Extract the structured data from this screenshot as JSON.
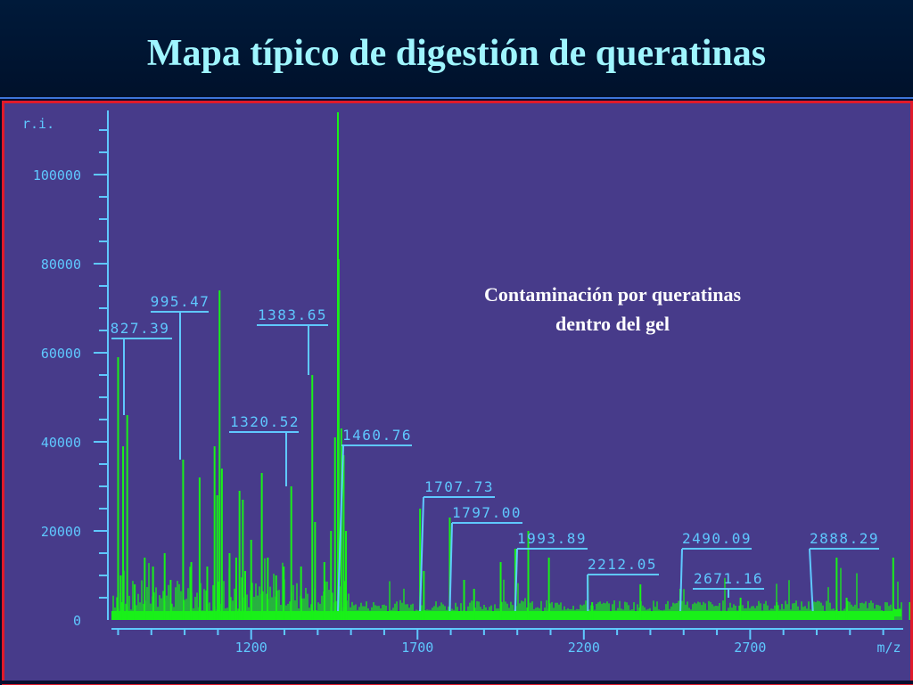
{
  "slide": {
    "title": "Mapa típico de digestión de queratinas",
    "annotation_lines": [
      "Contaminación por queratinas",
      "dentro del gel"
    ]
  },
  "colors": {
    "background": "#473b8a",
    "axis": "#5fc8ff",
    "spectrum": "#19f019",
    "frame": "#e01a2a",
    "title": "#9ff5ff"
  },
  "chart_data": {
    "type": "line",
    "subtype": "mass-spectrum",
    "xlabel": "m/z",
    "ylabel": "r.i.",
    "xlim": [
      780,
      3160
    ],
    "ylim": [
      0,
      115000
    ],
    "x_ticks": [
      1200,
      1700,
      2200,
      2700
    ],
    "y_ticks": [
      0,
      20000,
      40000,
      60000,
      80000,
      100000
    ],
    "y_tick_labels": [
      "0",
      "20000",
      "40000",
      "60000",
      "80000",
      "100000"
    ],
    "baseline": 2000,
    "peaks": [
      {
        "mz": 800,
        "ri": 59000
      },
      {
        "mz": 808,
        "ri": 10000
      },
      {
        "mz": 815,
        "ri": 39000
      },
      {
        "mz": 827.39,
        "ri": 46000
      },
      {
        "mz": 850,
        "ri": 8000
      },
      {
        "mz": 880,
        "ri": 14000
      },
      {
        "mz": 905,
        "ri": 12000
      },
      {
        "mz": 940,
        "ri": 15000
      },
      {
        "mz": 958,
        "ri": 9000
      },
      {
        "mz": 995.47,
        "ri": 36000
      },
      {
        "mz": 1020,
        "ri": 13000
      },
      {
        "mz": 1045,
        "ri": 32000
      },
      {
        "mz": 1068,
        "ri": 12000
      },
      {
        "mz": 1090,
        "ri": 39000
      },
      {
        "mz": 1098,
        "ri": 28000
      },
      {
        "mz": 1105,
        "ri": 74000
      },
      {
        "mz": 1112,
        "ri": 34000
      },
      {
        "mz": 1135,
        "ri": 15000
      },
      {
        "mz": 1155,
        "ri": 14000
      },
      {
        "mz": 1165,
        "ri": 29000
      },
      {
        "mz": 1175,
        "ri": 27000
      },
      {
        "mz": 1182,
        "ri": 11000
      },
      {
        "mz": 1200,
        "ri": 18000
      },
      {
        "mz": 1232,
        "ri": 33000
      },
      {
        "mz": 1250,
        "ri": 14000
      },
      {
        "mz": 1275,
        "ri": 10000
      },
      {
        "mz": 1298,
        "ri": 12000
      },
      {
        "mz": 1320.52,
        "ri": 30000
      },
      {
        "mz": 1350,
        "ri": 12000
      },
      {
        "mz": 1383.65,
        "ri": 55000
      },
      {
        "mz": 1392,
        "ri": 22000
      },
      {
        "mz": 1420,
        "ri": 13000
      },
      {
        "mz": 1440,
        "ri": 20000
      },
      {
        "mz": 1452,
        "ri": 41000
      },
      {
        "mz": 1460.76,
        "ri": 114000
      },
      {
        "mz": 1463,
        "ri": 81000
      },
      {
        "mz": 1471,
        "ri": 43000
      },
      {
        "mz": 1478,
        "ri": 37000
      },
      {
        "mz": 1485,
        "ri": 20000
      },
      {
        "mz": 1707.73,
        "ri": 25000
      },
      {
        "mz": 1719,
        "ri": 11000
      },
      {
        "mz": 1797.0,
        "ri": 23000
      },
      {
        "mz": 1840,
        "ri": 9000
      },
      {
        "mz": 1870,
        "ri": 7000
      },
      {
        "mz": 1950,
        "ri": 13000
      },
      {
        "mz": 1993.89,
        "ri": 16000
      },
      {
        "mz": 2033,
        "ri": 20000
      },
      {
        "mz": 2095,
        "ri": 14000
      },
      {
        "mz": 2212.05,
        "ri": 10000
      },
      {
        "mz": 2225,
        "ri": 4000
      },
      {
        "mz": 2370,
        "ri": 8000
      },
      {
        "mz": 2490.09,
        "ri": 7000
      },
      {
        "mz": 2671.16,
        "ri": 5000
      },
      {
        "mz": 2780,
        "ri": 4000
      },
      {
        "mz": 2960,
        "ri": 14000
      },
      {
        "mz": 2990,
        "ri": 5000
      },
      {
        "mz": 3130,
        "ri": 14000
      },
      {
        "mz": 3180,
        "ri": 4000
      }
    ],
    "labels": [
      {
        "text": "827.39",
        "mz": 827.39
      },
      {
        "text": "995.47",
        "mz": 995.47
      },
      {
        "text": "1383.65",
        "mz": 1383.65
      },
      {
        "text": "1320.52",
        "mz": 1320.52
      },
      {
        "text": "1460.76",
        "mz": 1460.76
      },
      {
        "text": "1707.73",
        "mz": 1707.73
      },
      {
        "text": "1797.00",
        "mz": 1797.0
      },
      {
        "text": "1993.89",
        "mz": 1993.89
      },
      {
        "text": "2212.05",
        "mz": 2212.05
      },
      {
        "text": "2490.09",
        "mz": 2490.09
      },
      {
        "text": "2671.16",
        "mz": 2671.16
      },
      {
        "text": "2888.29",
        "mz": 2888.29
      }
    ]
  }
}
